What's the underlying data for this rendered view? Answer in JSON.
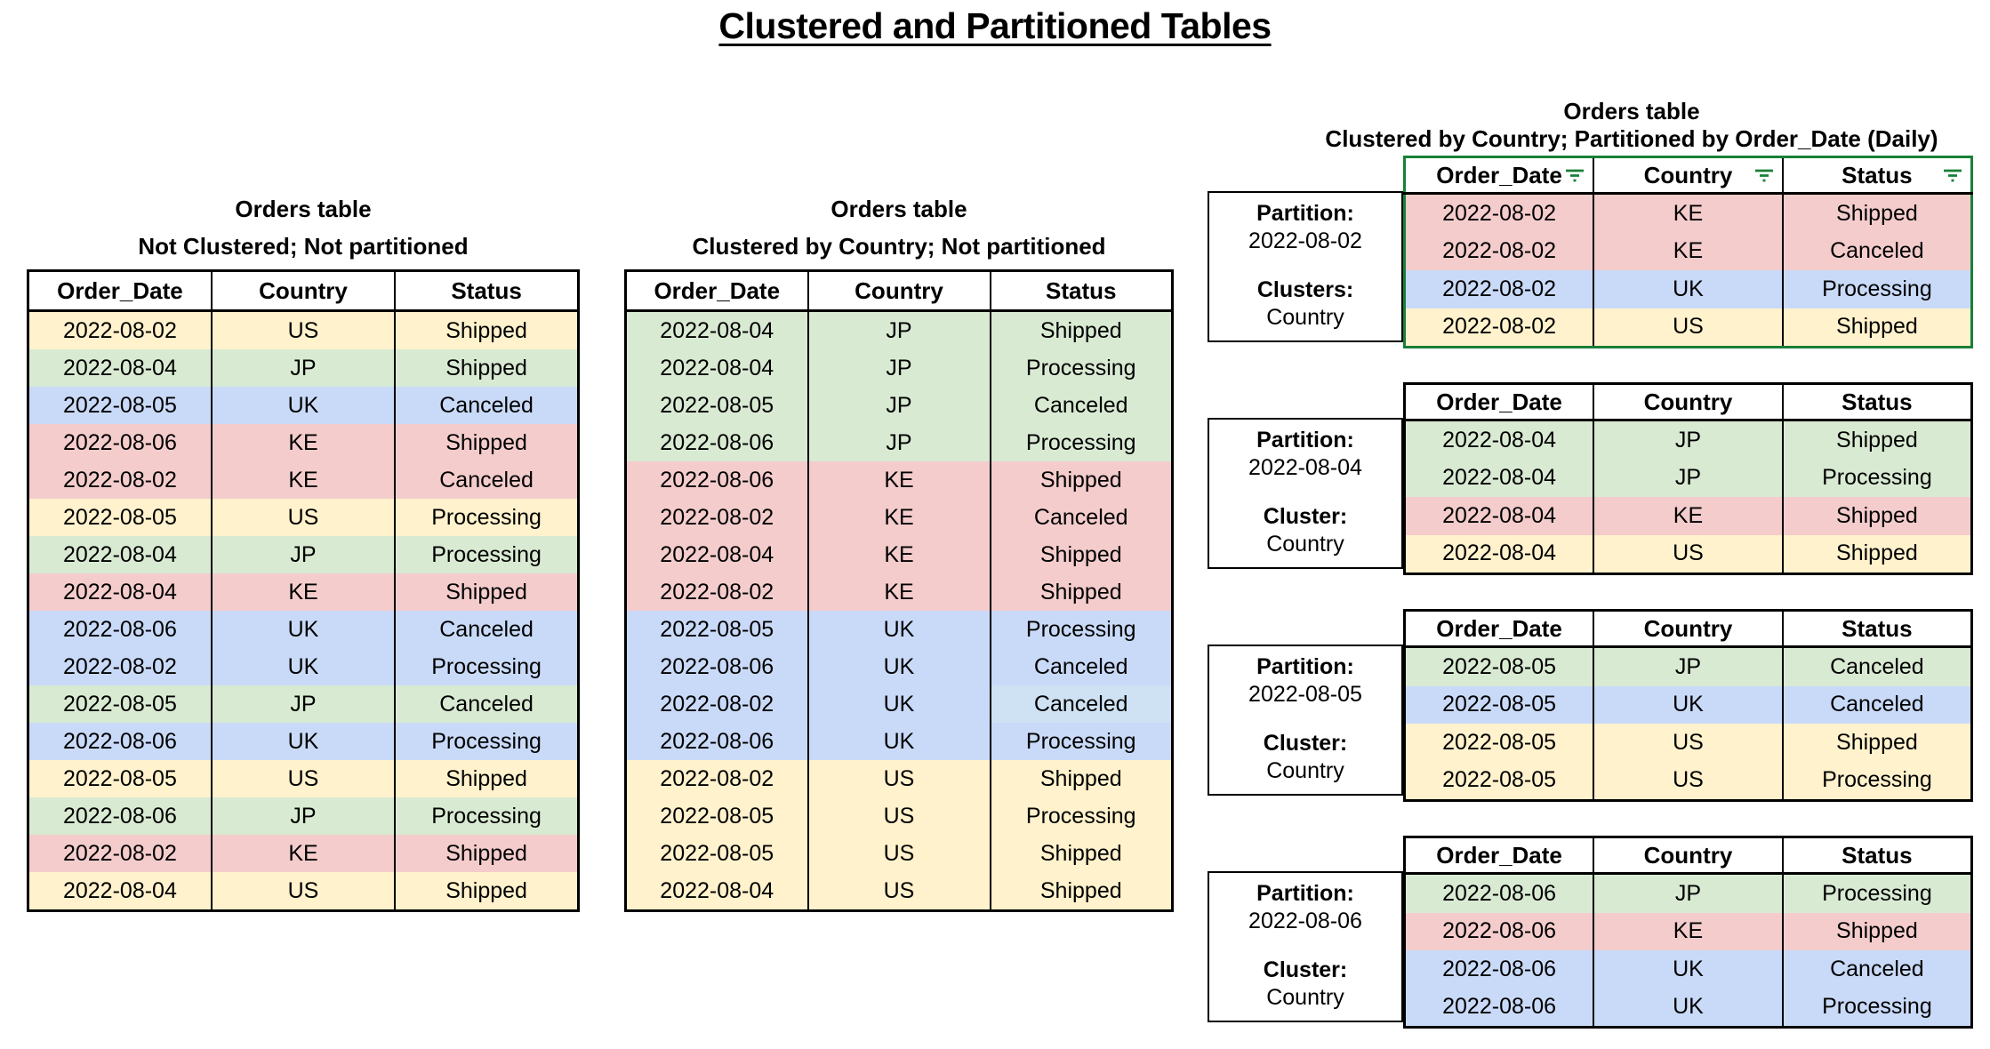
{
  "title": "Clustered and Partitioned Tables",
  "colors": {
    "US": "#fff2cc",
    "JP": "#d9ead3",
    "UK": "#c9daf8",
    "KE": "#f4cccc",
    "light_blue": "#cfe2f3",
    "filter_green": "#188038",
    "table_border": "#000000"
  },
  "columns": [
    "Order_Date",
    "Country",
    "Status"
  ],
  "tables": {
    "left": {
      "title1": "Orders table",
      "title2": "Not Clustered; Not partitioned",
      "rows": [
        [
          "2022-08-02",
          "US",
          "Shipped"
        ],
        [
          "2022-08-04",
          "JP",
          "Shipped"
        ],
        [
          "2022-08-05",
          "UK",
          "Canceled"
        ],
        [
          "2022-08-06",
          "KE",
          "Shipped"
        ],
        [
          "2022-08-02",
          "KE",
          "Canceled"
        ],
        [
          "2022-08-05",
          "US",
          "Processing"
        ],
        [
          "2022-08-04",
          "JP",
          "Processing"
        ],
        [
          "2022-08-04",
          "KE",
          "Shipped"
        ],
        [
          "2022-08-06",
          "UK",
          "Canceled"
        ],
        [
          "2022-08-02",
          "UK",
          "Processing"
        ],
        [
          "2022-08-05",
          "JP",
          "Canceled"
        ],
        [
          "2022-08-06",
          "UK",
          "Processing"
        ],
        [
          "2022-08-05",
          "US",
          "Shipped"
        ],
        [
          "2022-08-06",
          "JP",
          "Processing"
        ],
        [
          "2022-08-02",
          "KE",
          "Shipped"
        ],
        [
          "2022-08-04",
          "US",
          "Shipped"
        ]
      ]
    },
    "middle": {
      "title1": "Orders table",
      "title2": "Clustered by Country; Not partitioned",
      "light_cells": [
        [
          10,
          2
        ]
      ],
      "rows": [
        [
          "2022-08-04",
          "JP",
          "Shipped"
        ],
        [
          "2022-08-04",
          "JP",
          "Processing"
        ],
        [
          "2022-08-05",
          "JP",
          "Canceled"
        ],
        [
          "2022-08-06",
          "JP",
          "Processing"
        ],
        [
          "2022-08-06",
          "KE",
          "Shipped"
        ],
        [
          "2022-08-02",
          "KE",
          "Canceled"
        ],
        [
          "2022-08-04",
          "KE",
          "Shipped"
        ],
        [
          "2022-08-02",
          "KE",
          "Shipped"
        ],
        [
          "2022-08-05",
          "UK",
          "Processing"
        ],
        [
          "2022-08-06",
          "UK",
          "Canceled"
        ],
        [
          "2022-08-02",
          "UK",
          "Canceled"
        ],
        [
          "2022-08-06",
          "UK",
          "Processing"
        ],
        [
          "2022-08-02",
          "US",
          "Shipped"
        ],
        [
          "2022-08-05",
          "US",
          "Processing"
        ],
        [
          "2022-08-05",
          "US",
          "Shipped"
        ],
        [
          "2022-08-04",
          "US",
          "Shipped"
        ]
      ]
    },
    "right": {
      "title1": "Orders table",
      "title2": "Clustered by Country; Partitioned by Order_Date (Daily)",
      "partitions": [
        {
          "partition_label": "Partition:",
          "partition_value": "2022-08-02",
          "cluster_label": "Clusters:",
          "cluster_value": "Country",
          "filtered": true,
          "rows": [
            [
              "2022-08-02",
              "KE",
              "Shipped"
            ],
            [
              "2022-08-02",
              "KE",
              "Canceled"
            ],
            [
              "2022-08-02",
              "UK",
              "Processing"
            ],
            [
              "2022-08-02",
              "US",
              "Shipped"
            ]
          ]
        },
        {
          "partition_label": "Partition:",
          "partition_value": "2022-08-04",
          "cluster_label": "Cluster:",
          "cluster_value": "Country",
          "filtered": false,
          "rows": [
            [
              "2022-08-04",
              "JP",
              "Shipped"
            ],
            [
              "2022-08-04",
              "JP",
              "Processing"
            ],
            [
              "2022-08-04",
              "KE",
              "Shipped"
            ],
            [
              "2022-08-04",
              "US",
              "Shipped"
            ]
          ]
        },
        {
          "partition_label": "Partition:",
          "partition_value": "2022-08-05",
          "cluster_label": "Cluster:",
          "cluster_value": "Country",
          "filtered": false,
          "rows": [
            [
              "2022-08-05",
              "JP",
              "Canceled"
            ],
            [
              "2022-08-05",
              "UK",
              "Canceled"
            ],
            [
              "2022-08-05",
              "US",
              "Shipped"
            ],
            [
              "2022-08-05",
              "US",
              "Processing"
            ]
          ]
        },
        {
          "partition_label": "Partition:",
          "partition_value": "2022-08-06",
          "cluster_label": "Cluster:",
          "cluster_value": "Country",
          "filtered": false,
          "rows": [
            [
              "2022-08-06",
              "JP",
              "Processing"
            ],
            [
              "2022-08-06",
              "KE",
              "Shipped"
            ],
            [
              "2022-08-06",
              "UK",
              "Canceled"
            ],
            [
              "2022-08-06",
              "UK",
              "Processing"
            ]
          ]
        }
      ]
    }
  }
}
